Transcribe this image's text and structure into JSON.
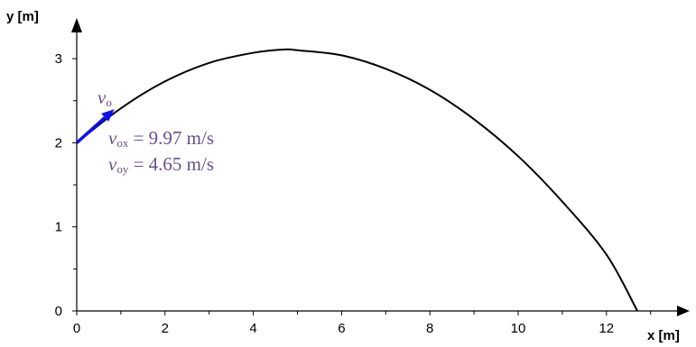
{
  "chart_data": {
    "type": "line",
    "title": "",
    "xlabel": "x [m]",
    "ylabel": "y [m]",
    "xlim": [
      0,
      13.5
    ],
    "ylim": [
      0,
      3.3
    ],
    "x_ticks": [
      0,
      2,
      4,
      6,
      8,
      10,
      12
    ],
    "y_ticks": [
      0,
      1,
      2,
      3
    ],
    "grid": false,
    "series": [
      {
        "color": "#000000",
        "points": [
          [
            0,
            2.0
          ],
          [
            1,
            2.41
          ],
          [
            2,
            2.73
          ],
          [
            3,
            2.95
          ],
          [
            4,
            3.07
          ],
          [
            4.7,
            3.11
          ],
          [
            5,
            3.1
          ],
          [
            6,
            3.04
          ],
          [
            7,
            2.88
          ],
          [
            8,
            2.63
          ],
          [
            9,
            2.28
          ],
          [
            10,
            1.84
          ],
          [
            11,
            1.3
          ],
          [
            12,
            0.67
          ],
          [
            12.7,
            0.0
          ]
        ]
      }
    ],
    "velocity_vector": {
      "color": "#1010e8",
      "from": [
        0,
        2.0
      ],
      "to": [
        0.85,
        2.4
      ]
    },
    "annotations": {
      "color": "#6b4f8c",
      "v0": {
        "symbol": "v",
        "sub": "o"
      },
      "vox": {
        "symbol": "v",
        "sub": "ox",
        "text": " = 9.97 m/s"
      },
      "voy": {
        "symbol": "v",
        "sub": "oy",
        "text": " = 4.65 m/s"
      }
    }
  }
}
